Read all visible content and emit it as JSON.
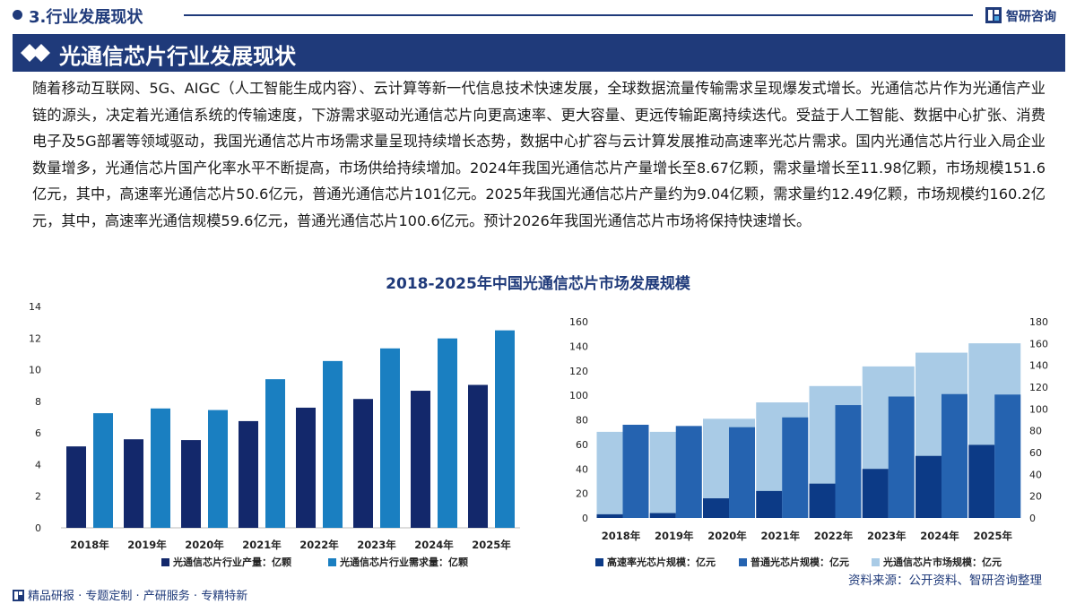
{
  "header": {
    "section_title": "3.行业发展现状",
    "logo_text": "智研咨询"
  },
  "banner": {
    "title": "光通信芯片行业发展现状"
  },
  "paragraph": "随着移动互联网、5G、AIGC（人工智能生成内容）、云计算等新一代信息技术快速发展，全球数据流量传输需求呈现爆发式增长。光通信芯片作为光通信产业链的源头，决定着光通信系统的传输速度，下游需求驱动光通信芯片向更高速率、更大容量、更远传输距离持续迭代。受益于人工智能、数据中心扩张、消费电子及5G部署等领域驱动，我国光通信芯片市场需求量呈现持续增长态势，数据中心扩容与云计算发展推动高速率光芯片需求。国内光通信芯片行业入局企业数量增多，光通信芯片国产化率水平不断提高，市场供给持续增加。2024年我国光通信芯片产量增长至8.67亿颗，需求量增长至11.98亿颗，市场规模151.6亿元，其中，高速率光通信芯片50.6亿元，普通光通信芯片101亿元。2025年我国光通信芯片产量约为9.04亿颗，需求量约12.49亿颗，市场规模约160.2亿元，其中，高速率光通信规模59.6亿元，普通光通信芯片100.6亿元。预计2026年我国光通信芯片市场将保持快速增长。",
  "chart_title": "2018-2025年中国光通信芯片市场发展规模",
  "chart_data": [
    {
      "type": "bar",
      "categories": [
        "2018年",
        "2019年",
        "2020年",
        "2021年",
        "2022年",
        "2023年",
        "2024年",
        "2025年"
      ],
      "series": [
        {
          "name": "光通信芯片行业产量：亿颗",
          "values": [
            5.15,
            5.6,
            5.55,
            6.75,
            7.6,
            8.15,
            8.67,
            9.04
          ],
          "color": "#13286b"
        },
        {
          "name": "光通信芯片行业需求量：亿颗",
          "values": [
            7.25,
            7.55,
            7.45,
            9.4,
            10.55,
            11.35,
            11.98,
            12.49
          ],
          "color": "#1a7fc1"
        }
      ],
      "ylim": [
        0,
        14
      ],
      "yticks": [
        "0",
        "2",
        "4",
        "6",
        "8",
        "10",
        "12",
        "14"
      ],
      "grid": false,
      "legend": "bottom"
    },
    {
      "type": "bar",
      "categories": [
        "2018年",
        "2019年",
        "2020年",
        "2021年",
        "2022年",
        "2023年",
        "2024年",
        "2025年"
      ],
      "series": [
        {
          "name": "高速率光芯片规模：亿元",
          "axis": "left",
          "values": [
            3,
            4,
            16,
            22,
            28,
            40,
            50.6,
            59.6
          ],
          "color": "#0c3a86"
        },
        {
          "name": "普通光芯片规模：亿元",
          "axis": "left",
          "values": [
            76,
            75,
            74,
            82,
            92,
            99,
            101,
            100.6
          ],
          "color": "#2563b0"
        },
        {
          "name": "光通信芯片市场规模：亿元",
          "axis": "right",
          "values": [
            79,
            79,
            91,
            106,
            121,
            139,
            151.6,
            160.2
          ],
          "color": "#a9cbe6"
        }
      ],
      "ylim_left": [
        0,
        160
      ],
      "ylim_right": [
        0,
        180
      ],
      "yticks_left": [
        "0",
        "20",
        "40",
        "60",
        "80",
        "100",
        "120",
        "140",
        "160"
      ],
      "yticks_right": [
        "0",
        "20",
        "40",
        "60",
        "80",
        "100",
        "120",
        "140",
        "160",
        "180"
      ],
      "grid": false,
      "legend": "bottom"
    }
  ],
  "footer": {
    "services": "精品研报 · 专题定制 · 产研服务 · 专精特新",
    "source": "资料来源：公开资料、智研咨询整理"
  }
}
